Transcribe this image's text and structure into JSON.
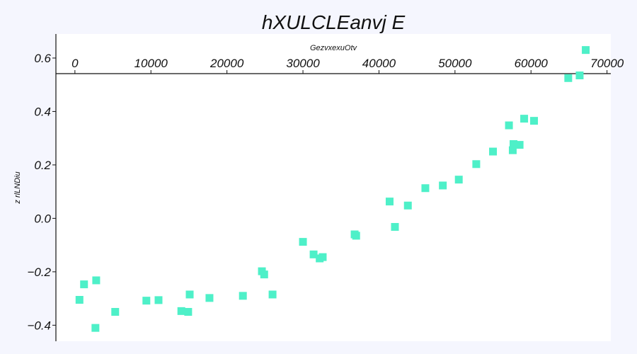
{
  "chart_data": {
    "type": "scatter",
    "title": "hXULCLEanvj E",
    "xlabel": "GezvxexuOtv",
    "ylabel": "z rlLNDiu",
    "xlim": [
      -2500,
      70500
    ],
    "ylim": [
      -0.46,
      0.69
    ],
    "xticks": [
      0,
      10000,
      20000,
      30000,
      40000,
      50000,
      60000,
      70000
    ],
    "yticks": [
      -0.4,
      -0.2,
      0.0,
      0.2,
      0.4,
      0.6
    ],
    "ytick_labels": [
      "−0.4",
      "−0.2",
      "0.0",
      "0.2",
      "0.4",
      "0.6"
    ],
    "x_axis_position": "top-inside",
    "grid": false,
    "marker": "square",
    "color": "#4ef0c8",
    "points": [
      {
        "x": 600,
        "y": -0.305
      },
      {
        "x": 1200,
        "y": -0.247
      },
      {
        "x": 2700,
        "y": -0.41
      },
      {
        "x": 2800,
        "y": -0.232
      },
      {
        "x": 5300,
        "y": -0.35
      },
      {
        "x": 9400,
        "y": -0.308
      },
      {
        "x": 11000,
        "y": -0.306
      },
      {
        "x": 14000,
        "y": -0.347
      },
      {
        "x": 14900,
        "y": -0.35
      },
      {
        "x": 15100,
        "y": -0.285
      },
      {
        "x": 17700,
        "y": -0.298
      },
      {
        "x": 22100,
        "y": -0.29
      },
      {
        "x": 24600,
        "y": -0.198
      },
      {
        "x": 24900,
        "y": -0.21
      },
      {
        "x": 26000,
        "y": -0.285
      },
      {
        "x": 30000,
        "y": -0.088
      },
      {
        "x": 31400,
        "y": -0.135
      },
      {
        "x": 32200,
        "y": -0.15
      },
      {
        "x": 32600,
        "y": -0.145
      },
      {
        "x": 36800,
        "y": -0.06
      },
      {
        "x": 37000,
        "y": -0.065
      },
      {
        "x": 41400,
        "y": 0.063
      },
      {
        "x": 42100,
        "y": -0.032
      },
      {
        "x": 43800,
        "y": 0.048
      },
      {
        "x": 46100,
        "y": 0.113
      },
      {
        "x": 48400,
        "y": 0.123
      },
      {
        "x": 50500,
        "y": 0.145
      },
      {
        "x": 52800,
        "y": 0.203
      },
      {
        "x": 55000,
        "y": 0.25
      },
      {
        "x": 57100,
        "y": 0.348
      },
      {
        "x": 57600,
        "y": 0.255
      },
      {
        "x": 57700,
        "y": 0.278
      },
      {
        "x": 58500,
        "y": 0.275
      },
      {
        "x": 59100,
        "y": 0.373
      },
      {
        "x": 60400,
        "y": 0.365
      },
      {
        "x": 64900,
        "y": 0.525
      },
      {
        "x": 66400,
        "y": 0.535
      },
      {
        "x": 67200,
        "y": 0.63
      }
    ]
  }
}
